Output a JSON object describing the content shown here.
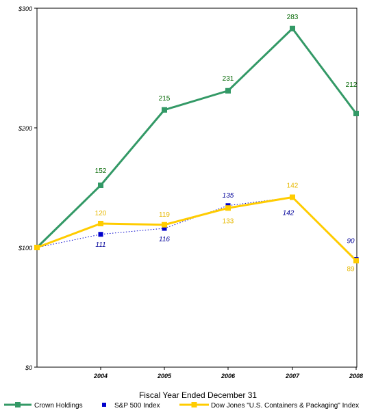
{
  "chart_data": {
    "type": "line",
    "title": "",
    "xlabel": "Fiscal Year Ended December 31",
    "ylabel": "",
    "categories": [
      "",
      "2004",
      "2005",
      "2006",
      "2007",
      "2008"
    ],
    "y_ticks": [
      {
        "value": 0,
        "label": "$0"
      },
      {
        "value": 100,
        "label": "$100"
      },
      {
        "value": 200,
        "label": "$200"
      },
      {
        "value": 300,
        "label": "$300"
      }
    ],
    "ylim": [
      0,
      300
    ],
    "grid": false,
    "legend_position": "bottom",
    "series": [
      {
        "name": "Crown Holdings",
        "color": "#339966",
        "style": "solid-thick",
        "marker": "square",
        "values": [
          100,
          152,
          215,
          231,
          283,
          212
        ],
        "labels": [
          "",
          "152",
          "215",
          "231",
          "283",
          "212"
        ]
      },
      {
        "name": "S&P 500 Index",
        "color": "#0000cc",
        "style": "dotted",
        "marker": "square",
        "values": [
          100,
          111,
          116,
          135,
          142,
          90
        ],
        "labels": [
          "",
          "111",
          "116",
          "135",
          "142",
          "90"
        ]
      },
      {
        "name": "Dow Jones \"U.S. Containers & Packaging\" Index",
        "color": "#ffcc00",
        "style": "solid-thick",
        "marker": "square",
        "values": [
          100,
          120,
          119,
          133,
          142,
          89
        ],
        "labels": [
          "",
          "120",
          "119",
          "133",
          "142",
          "89"
        ]
      }
    ]
  }
}
